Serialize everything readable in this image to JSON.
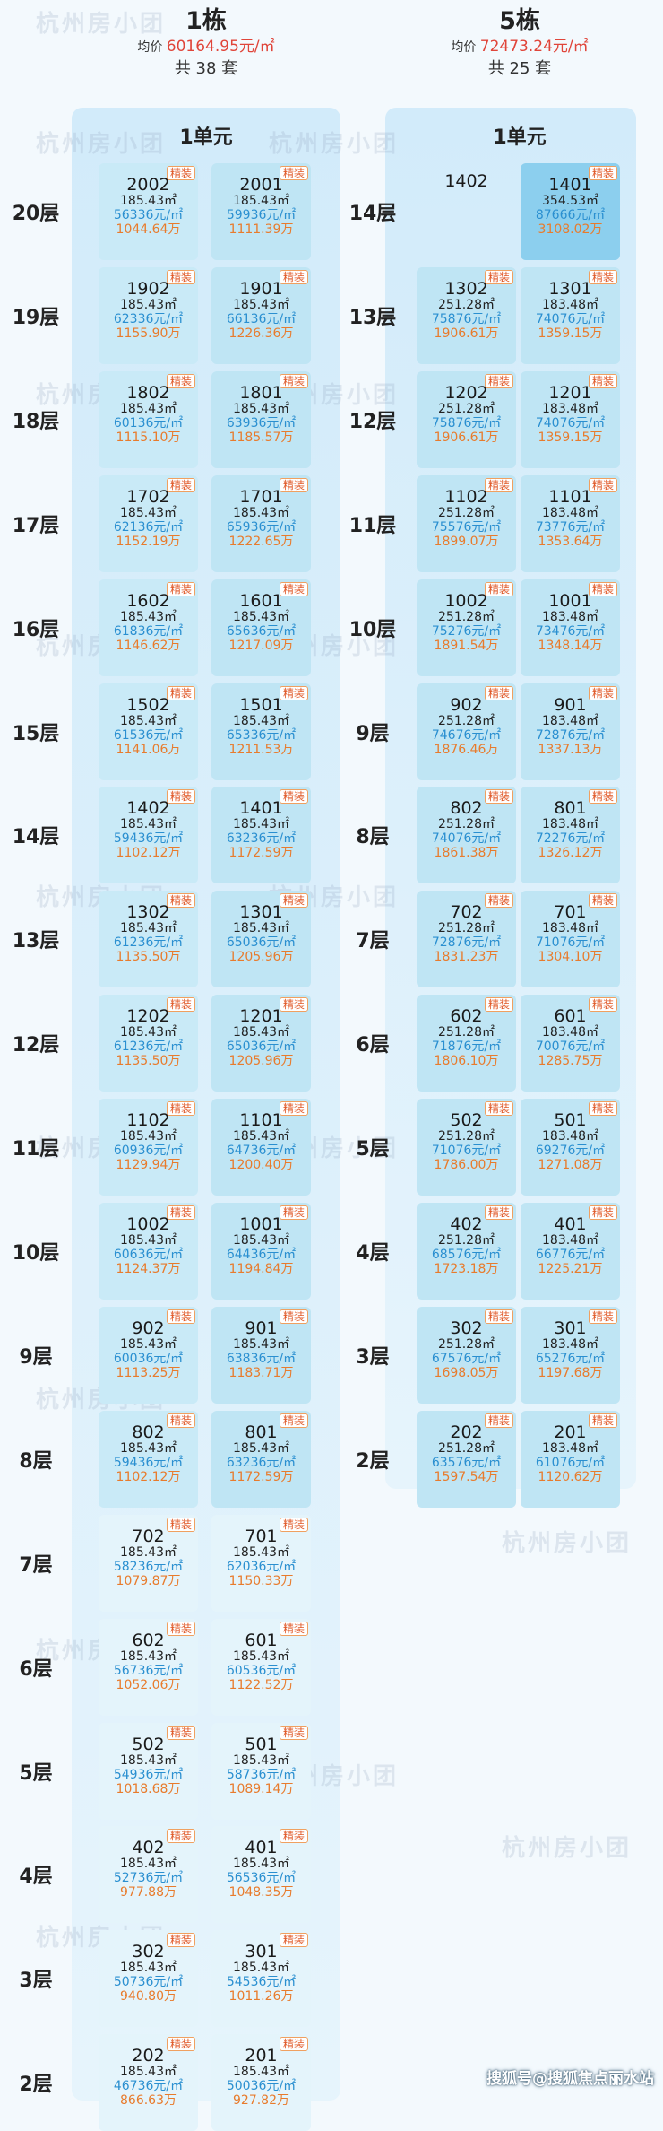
{
  "b1": {
    "name": "1栋",
    "avg_label": "均价",
    "avg_value": "60164.95元/㎡",
    "count": "共 38 套",
    "unit": "1单元",
    "floors": [
      {
        "label": "20层",
        "units": [
          {
            "room": "2002",
            "area": "185.43㎡",
            "price": "56336元/㎡",
            "total": "1044.64万",
            "tag": "精装"
          },
          {
            "room": "2001",
            "area": "185.43㎡",
            "price": "59936元/㎡",
            "total": "1111.39万",
            "tag": "精装"
          }
        ]
      },
      {
        "label": "19层",
        "units": [
          {
            "room": "1902",
            "area": "185.43㎡",
            "price": "62336元/㎡",
            "total": "1155.90万",
            "tag": "精装"
          },
          {
            "room": "1901",
            "area": "185.43㎡",
            "price": "66136元/㎡",
            "total": "1226.36万",
            "tag": "精装"
          }
        ]
      },
      {
        "label": "18层",
        "units": [
          {
            "room": "1802",
            "area": "185.43㎡",
            "price": "60136元/㎡",
            "total": "1115.10万",
            "tag": "精装"
          },
          {
            "room": "1801",
            "area": "185.43㎡",
            "price": "63936元/㎡",
            "total": "1185.57万",
            "tag": "精装"
          }
        ]
      },
      {
        "label": "17层",
        "units": [
          {
            "room": "1702",
            "area": "185.43㎡",
            "price": "62136元/㎡",
            "total": "1152.19万",
            "tag": "精装"
          },
          {
            "room": "1701",
            "area": "185.43㎡",
            "price": "65936元/㎡",
            "total": "1222.65万",
            "tag": "精装"
          }
        ]
      },
      {
        "label": "16层",
        "units": [
          {
            "room": "1602",
            "area": "185.43㎡",
            "price": "61836元/㎡",
            "total": "1146.62万",
            "tag": "精装"
          },
          {
            "room": "1601",
            "area": "185.43㎡",
            "price": "65636元/㎡",
            "total": "1217.09万",
            "tag": "精装"
          }
        ]
      },
      {
        "label": "15层",
        "units": [
          {
            "room": "1502",
            "area": "185.43㎡",
            "price": "61536元/㎡",
            "total": "1141.06万",
            "tag": "精装"
          },
          {
            "room": "1501",
            "area": "185.43㎡",
            "price": "65336元/㎡",
            "total": "1211.53万",
            "tag": "精装"
          }
        ]
      },
      {
        "label": "14层",
        "units": [
          {
            "room": "1402",
            "area": "185.43㎡",
            "price": "59436元/㎡",
            "total": "1102.12万",
            "tag": "精装"
          },
          {
            "room": "1401",
            "area": "185.43㎡",
            "price": "63236元/㎡",
            "total": "1172.59万",
            "tag": "精装"
          }
        ]
      },
      {
        "label": "13层",
        "units": [
          {
            "room": "1302",
            "area": "185.43㎡",
            "price": "61236元/㎡",
            "total": "1135.50万",
            "tag": "精装"
          },
          {
            "room": "1301",
            "area": "185.43㎡",
            "price": "65036元/㎡",
            "total": "1205.96万",
            "tag": "精装"
          }
        ]
      },
      {
        "label": "12层",
        "units": [
          {
            "room": "1202",
            "area": "185.43㎡",
            "price": "61236元/㎡",
            "total": "1135.50万",
            "tag": "精装"
          },
          {
            "room": "1201",
            "area": "185.43㎡",
            "price": "65036元/㎡",
            "total": "1205.96万",
            "tag": "精装"
          }
        ]
      },
      {
        "label": "11层",
        "units": [
          {
            "room": "1102",
            "area": "185.43㎡",
            "price": "60936元/㎡",
            "total": "1129.94万",
            "tag": "精装"
          },
          {
            "room": "1101",
            "area": "185.43㎡",
            "price": "64736元/㎡",
            "total": "1200.40万",
            "tag": "精装"
          }
        ]
      },
      {
        "label": "10层",
        "units": [
          {
            "room": "1002",
            "area": "185.43㎡",
            "price": "60636元/㎡",
            "total": "1124.37万",
            "tag": "精装"
          },
          {
            "room": "1001",
            "area": "185.43㎡",
            "price": "64436元/㎡",
            "total": "1194.84万",
            "tag": "精装"
          }
        ]
      },
      {
        "label": "9层",
        "units": [
          {
            "room": "902",
            "area": "185.43㎡",
            "price": "60036元/㎡",
            "total": "1113.25万",
            "tag": "精装"
          },
          {
            "room": "901",
            "area": "185.43㎡",
            "price": "63836元/㎡",
            "total": "1183.71万",
            "tag": "精装"
          }
        ]
      },
      {
        "label": "8层",
        "units": [
          {
            "room": "802",
            "area": "185.43㎡",
            "price": "59436元/㎡",
            "total": "1102.12万",
            "tag": "精装"
          },
          {
            "room": "801",
            "area": "185.43㎡",
            "price": "63236元/㎡",
            "total": "1172.59万",
            "tag": "精装"
          }
        ]
      },
      {
        "label": "7层",
        "units": [
          {
            "room": "702",
            "area": "185.43㎡",
            "price": "58236元/㎡",
            "total": "1079.87万",
            "tag": "精装"
          },
          {
            "room": "701",
            "area": "185.43㎡",
            "price": "62036元/㎡",
            "total": "1150.33万",
            "tag": "精装"
          }
        ]
      },
      {
        "label": "6层",
        "units": [
          {
            "room": "602",
            "area": "185.43㎡",
            "price": "56736元/㎡",
            "total": "1052.06万",
            "tag": "精装"
          },
          {
            "room": "601",
            "area": "185.43㎡",
            "price": "60536元/㎡",
            "total": "1122.52万",
            "tag": "精装"
          }
        ]
      },
      {
        "label": "5层",
        "units": [
          {
            "room": "502",
            "area": "185.43㎡",
            "price": "54936元/㎡",
            "total": "1018.68万",
            "tag": "精装"
          },
          {
            "room": "501",
            "area": "185.43㎡",
            "price": "58736元/㎡",
            "total": "1089.14万",
            "tag": "精装"
          }
        ]
      },
      {
        "label": "4层",
        "units": [
          {
            "room": "402",
            "area": "185.43㎡",
            "price": "52736元/㎡",
            "total": "977.88万",
            "tag": "精装"
          },
          {
            "room": "401",
            "area": "185.43㎡",
            "price": "56536元/㎡",
            "total": "1048.35万",
            "tag": "精装"
          }
        ]
      },
      {
        "label": "3层",
        "units": [
          {
            "room": "302",
            "area": "185.43㎡",
            "price": "50736元/㎡",
            "total": "940.80万",
            "tag": "精装"
          },
          {
            "room": "301",
            "area": "185.43㎡",
            "price": "54536元/㎡",
            "total": "1011.26万",
            "tag": "精装"
          }
        ]
      },
      {
        "label": "2层",
        "units": [
          {
            "room": "202",
            "area": "185.43㎡",
            "price": "46736元/㎡",
            "total": "866.63万",
            "tag": "精装"
          },
          {
            "room": "201",
            "area": "185.43㎡",
            "price": "50036元/㎡",
            "total": "927.82万",
            "tag": "精装"
          }
        ]
      }
    ]
  },
  "b5": {
    "name": "5栋",
    "avg_label": "均价",
    "avg_value": "72473.24元/㎡",
    "count": "共 25 套",
    "unit": "1单元",
    "floors": [
      {
        "label": "14层",
        "units": [
          {
            "room": "1402",
            "area": "",
            "price": "",
            "total": "",
            "tag": ""
          },
          {
            "room": "1401",
            "area": "354.53㎡",
            "price": "87666元/㎡",
            "total": "3108.02万",
            "tag": "精装"
          }
        ]
      },
      {
        "label": "13层",
        "units": [
          {
            "room": "1302",
            "area": "251.28㎡",
            "price": "75876元/㎡",
            "total": "1906.61万",
            "tag": "精装"
          },
          {
            "room": "1301",
            "area": "183.48㎡",
            "price": "74076元/㎡",
            "total": "1359.15万",
            "tag": "精装"
          }
        ]
      },
      {
        "label": "12层",
        "units": [
          {
            "room": "1202",
            "area": "251.28㎡",
            "price": "75876元/㎡",
            "total": "1906.61万",
            "tag": "精装"
          },
          {
            "room": "1201",
            "area": "183.48㎡",
            "price": "74076元/㎡",
            "total": "1359.15万",
            "tag": "精装"
          }
        ]
      },
      {
        "label": "11层",
        "units": [
          {
            "room": "1102",
            "area": "251.28㎡",
            "price": "75576元/㎡",
            "total": "1899.07万",
            "tag": "精装"
          },
          {
            "room": "1101",
            "area": "183.48㎡",
            "price": "73776元/㎡",
            "total": "1353.64万",
            "tag": "精装"
          }
        ]
      },
      {
        "label": "10层",
        "units": [
          {
            "room": "1002",
            "area": "251.28㎡",
            "price": "75276元/㎡",
            "total": "1891.54万",
            "tag": "精装"
          },
          {
            "room": "1001",
            "area": "183.48㎡",
            "price": "73476元/㎡",
            "total": "1348.14万",
            "tag": "精装"
          }
        ]
      },
      {
        "label": "9层",
        "units": [
          {
            "room": "902",
            "area": "251.28㎡",
            "price": "74676元/㎡",
            "total": "1876.46万",
            "tag": "精装"
          },
          {
            "room": "901",
            "area": "183.48㎡",
            "price": "72876元/㎡",
            "total": "1337.13万",
            "tag": "精装"
          }
        ]
      },
      {
        "label": "8层",
        "units": [
          {
            "room": "802",
            "area": "251.28㎡",
            "price": "74076元/㎡",
            "total": "1861.38万",
            "tag": "精装"
          },
          {
            "room": "801",
            "area": "183.48㎡",
            "price": "72276元/㎡",
            "total": "1326.12万",
            "tag": "精装"
          }
        ]
      },
      {
        "label": "7层",
        "units": [
          {
            "room": "702",
            "area": "251.28㎡",
            "price": "72876元/㎡",
            "total": "1831.23万",
            "tag": "精装"
          },
          {
            "room": "701",
            "area": "183.48㎡",
            "price": "71076元/㎡",
            "total": "1304.10万",
            "tag": "精装"
          }
        ]
      },
      {
        "label": "6层",
        "units": [
          {
            "room": "602",
            "area": "251.28㎡",
            "price": "71876元/㎡",
            "total": "1806.10万",
            "tag": "精装"
          },
          {
            "room": "601",
            "area": "183.48㎡",
            "price": "70076元/㎡",
            "total": "1285.75万",
            "tag": "精装"
          }
        ]
      },
      {
        "label": "5层",
        "units": [
          {
            "room": "502",
            "area": "251.28㎡",
            "price": "71076元/㎡",
            "total": "1786.00万",
            "tag": "精装"
          },
          {
            "room": "501",
            "area": "183.48㎡",
            "price": "69276元/㎡",
            "total": "1271.08万",
            "tag": "精装"
          }
        ]
      },
      {
        "label": "4层",
        "units": [
          {
            "room": "402",
            "area": "251.28㎡",
            "price": "68576元/㎡",
            "total": "1723.18万",
            "tag": "精装"
          },
          {
            "room": "401",
            "area": "183.48㎡",
            "price": "66776元/㎡",
            "total": "1225.21万",
            "tag": "精装"
          }
        ]
      },
      {
        "label": "3层",
        "units": [
          {
            "room": "302",
            "area": "251.28㎡",
            "price": "67576元/㎡",
            "total": "1698.05万",
            "tag": "精装"
          },
          {
            "room": "301",
            "area": "183.48㎡",
            "price": "65276元/㎡",
            "total": "1197.68万",
            "tag": "精装"
          }
        ]
      },
      {
        "label": "2层",
        "units": [
          {
            "room": "202",
            "area": "251.28㎡",
            "price": "63576元/㎡",
            "total": "1597.54万",
            "tag": "精装"
          },
          {
            "room": "201",
            "area": "183.48㎡",
            "price": "61076元/㎡",
            "total": "1120.62万",
            "tag": "精装"
          }
        ]
      }
    ]
  },
  "watermark": "杭州房小团",
  "footer": "搜狐号@搜狐焦点丽水站"
}
